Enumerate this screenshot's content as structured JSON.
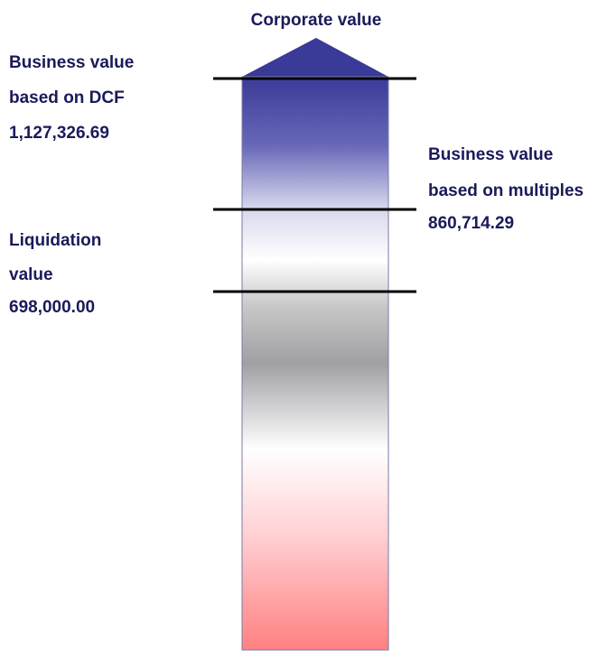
{
  "title": "Corporate value",
  "labels": [
    {
      "lines": [
        "Business value",
        "based on DCF",
        "1,127,326.69"
      ]
    },
    {
      "lines": [
        "Business value",
        "based on multiples",
        "860,714.29"
      ]
    },
    {
      "lines": [
        "Liquidation",
        "value",
        "698,000.00"
      ]
    }
  ]
}
